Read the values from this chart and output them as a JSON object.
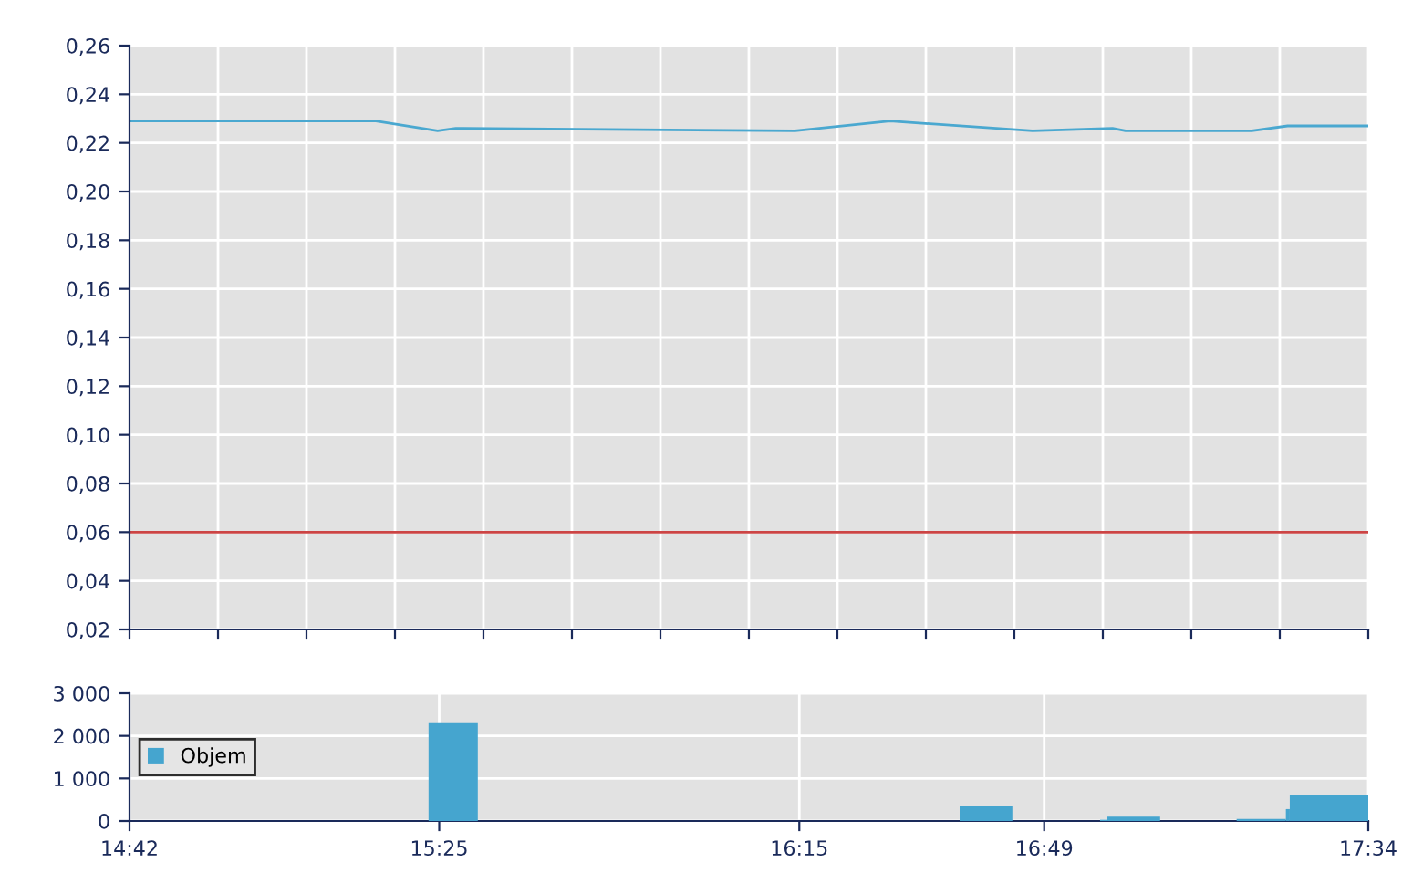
{
  "chart_data": [
    {
      "type": "line",
      "x": [
        14.7,
        15.27,
        15.413,
        15.455,
        16.24,
        16.46,
        16.79,
        16.975,
        17.005,
        17.297,
        17.38,
        17.5667
      ],
      "series": [
        {
          "color": "#4aa8d0",
          "values": [
            0.229,
            0.229,
            0.225,
            0.226,
            0.225,
            0.229,
            0.225,
            0.226,
            0.225,
            0.225,
            0.227,
            0.227
          ]
        }
      ],
      "xlim": [
        14.7,
        17.5667
      ],
      "xticks": [
        {
          "value": 14.7,
          "label": null
        },
        {
          "value": 14.9048,
          "label": null
        },
        {
          "value": 15.1095,
          "label": null
        },
        {
          "value": 15.3143,
          "label": null
        },
        {
          "value": 15.519,
          "label": null
        },
        {
          "value": 15.7238,
          "label": null
        },
        {
          "value": 15.9286,
          "label": null
        },
        {
          "value": 16.1333,
          "label": null
        },
        {
          "value": 16.3381,
          "label": null
        },
        {
          "value": 16.5429,
          "label": null
        },
        {
          "value": 16.7476,
          "label": null
        },
        {
          "value": 16.9524,
          "label": null
        },
        {
          "value": 17.1571,
          "label": null
        },
        {
          "value": 17.3619,
          "label": null
        },
        {
          "value": 17.5667,
          "label": null
        }
      ],
      "ylim": [
        0.02,
        0.26
      ],
      "yticks": [
        {
          "value": 0.02,
          "label": "0,02"
        },
        {
          "value": 0.04,
          "label": "0,04"
        },
        {
          "value": 0.06,
          "label": "0,06"
        },
        {
          "value": 0.08,
          "label": "0,08"
        },
        {
          "value": 0.1,
          "label": "0,10"
        },
        {
          "value": 0.12,
          "label": "0,12"
        },
        {
          "value": 0.14,
          "label": "0,14"
        },
        {
          "value": 0.16,
          "label": "0,16"
        },
        {
          "value": 0.18,
          "label": "0,18"
        },
        {
          "value": 0.2,
          "label": "0,20"
        },
        {
          "value": 0.22,
          "label": "0,22"
        },
        {
          "value": 0.24,
          "label": "0,24"
        },
        {
          "value": 0.26,
          "label": "0,26"
        }
      ],
      "ref_lines": [
        {
          "axis": "y",
          "value": 0.06,
          "color": "#cc4444"
        }
      ],
      "grid": true,
      "tick_labels": "y",
      "legend": false
    },
    {
      "type": "histogram",
      "bins": [
        15.392,
        15.506,
        16.621,
        16.743,
        16.946,
        16.963,
        17.085,
        17.262,
        17.376,
        17.385,
        17.5667
      ],
      "series": [
        {
          "name": "Objem",
          "color": "#45a5cf",
          "values": [
            2300,
            0,
            350,
            0,
            30,
            100,
            0,
            50,
            280,
            600
          ]
        }
      ],
      "xlim": [
        14.7,
        17.5667
      ],
      "xticks": [
        {
          "value": 14.7,
          "label": "14:42"
        },
        {
          "value": 15.4167,
          "label": "15:25"
        },
        {
          "value": 16.25,
          "label": "16:15"
        },
        {
          "value": 16.8167,
          "label": "16:49"
        },
        {
          "value": 17.5667,
          "label": "17:34"
        }
      ],
      "ylim": [
        0,
        3000
      ],
      "yticks": [
        {
          "value": 0,
          "label": "0"
        },
        {
          "value": 1000,
          "label": "1 000"
        },
        {
          "value": 2000,
          "label": "2 000"
        },
        {
          "value": 3000,
          "label": "3 000"
        }
      ],
      "grid": true,
      "legend": "left"
    }
  ]
}
